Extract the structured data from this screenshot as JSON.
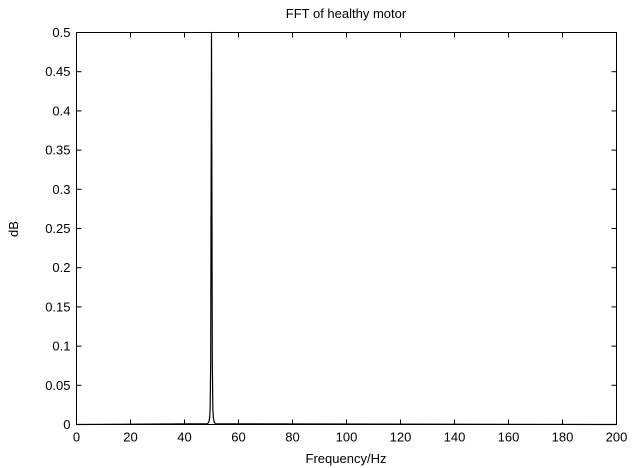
{
  "chart_data": {
    "type": "line",
    "title": "FFT of healthy motor",
    "xlabel": "Frequency/Hz",
    "ylabel": "dB",
    "xlim": [
      0,
      200
    ],
    "ylim": [
      0,
      0.5
    ],
    "xticks": [
      0,
      20,
      40,
      60,
      80,
      100,
      120,
      140,
      160,
      180,
      200
    ],
    "yticks": [
      0,
      0.05,
      0.1,
      0.15,
      0.2,
      0.25,
      0.3,
      0.35,
      0.4,
      0.45,
      0.5
    ],
    "xtick_labels": [
      "0",
      "20",
      "40",
      "60",
      "80",
      "100",
      "120",
      "140",
      "160",
      "180",
      "200"
    ],
    "ytick_labels": [
      "0",
      "0.05",
      "0.1",
      "0.15",
      "0.2",
      "0.25",
      "0.3",
      "0.35",
      "0.4",
      "0.45",
      "0.5"
    ],
    "grid": false,
    "series": [
      {
        "color": "#000000",
        "x": [
          0,
          48.5,
          49.0,
          49.3,
          49.5,
          49.7,
          49.85,
          50.0,
          50.15,
          50.3,
          50.5,
          50.7,
          51.0,
          51.5,
          200
        ],
        "y": [
          0,
          0.001,
          0.003,
          0.008,
          0.02,
          0.08,
          0.3,
          0.5,
          0.3,
          0.08,
          0.02,
          0.008,
          0.003,
          0.001,
          0
        ]
      }
    ]
  }
}
